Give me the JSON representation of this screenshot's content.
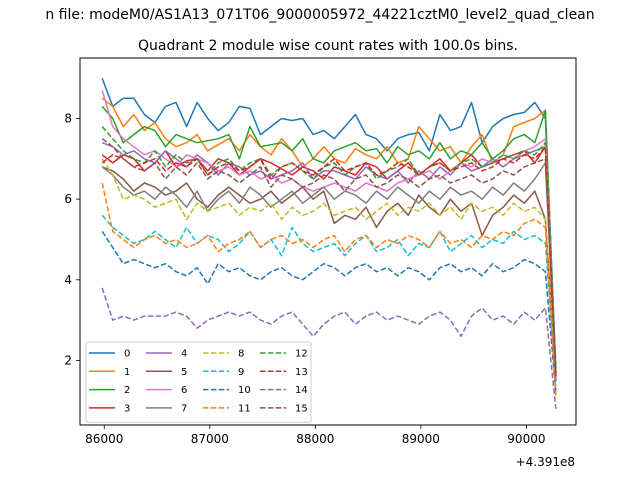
{
  "figure": {
    "suptitle": "n file: modeM0/AS1A13_071T06_9000005972_44221cztM0_level2_quad_clean",
    "title": "Quadrant 2 module wise count rates with 100.0s bins.",
    "offset_text": "+4.391e8"
  },
  "chart_data": {
    "type": "line",
    "title": "Quadrant 2 module wise count rates with 100.0s bins.",
    "xlabel": "",
    "ylabel": "",
    "x_offset": 439100000,
    "xlim": [
      85770,
      90470
    ],
    "ylim": [
      0.4,
      9.5
    ],
    "xticks": [
      86000,
      87000,
      88000,
      89000,
      90000
    ],
    "yticks": [
      2,
      4,
      6,
      8
    ],
    "grid": false,
    "legend": {
      "placement": "lower-left",
      "columns": 4
    },
    "x": [
      85980,
      86080,
      86180,
      86280,
      86380,
      86480,
      86580,
      86680,
      86780,
      86880,
      86980,
      87080,
      87180,
      87280,
      87380,
      87480,
      87580,
      87680,
      87780,
      87880,
      87980,
      88080,
      88180,
      88280,
      88380,
      88480,
      88580,
      88680,
      88780,
      88880,
      88980,
      89080,
      89180,
      89280,
      89380,
      89480,
      89580,
      89680,
      89780,
      89880,
      89980,
      90080,
      90180,
      90280
    ],
    "series": [
      {
        "name": "0",
        "color": "#1f77b4",
        "dash": "solid",
        "values": [
          9.0,
          8.3,
          8.5,
          8.5,
          8.1,
          7.9,
          8.3,
          8.4,
          7.8,
          8.4,
          8.0,
          7.7,
          7.9,
          8.3,
          8.25,
          7.6,
          7.8,
          8.0,
          7.95,
          8.0,
          7.6,
          7.7,
          7.5,
          7.8,
          8.1,
          7.6,
          7.5,
          7.2,
          7.5,
          7.6,
          7.65,
          7.2,
          8.1,
          7.7,
          7.8,
          8.4,
          7.4,
          7.8,
          8.0,
          8.1,
          8.15,
          8.4,
          8.0,
          1.8
        ]
      },
      {
        "name": "1",
        "color": "#ff7f0e",
        "dash": "solid",
        "values": [
          8.5,
          8.3,
          7.8,
          8.1,
          7.7,
          7.9,
          7.5,
          7.3,
          7.4,
          7.6,
          7.2,
          7.35,
          7.5,
          7.2,
          7.6,
          7.3,
          7.1,
          7.5,
          7.2,
          6.8,
          7.0,
          7.3,
          7.0,
          6.9,
          7.25,
          7.1,
          7.0,
          7.3,
          6.9,
          7.0,
          7.8,
          7.5,
          7.2,
          7.3,
          6.9,
          7.3,
          7.6,
          6.9,
          7.1,
          7.8,
          7.9,
          8.0,
          8.2,
          1.5
        ]
      },
      {
        "name": "2",
        "color": "#2ca02c",
        "dash": "solid",
        "values": [
          8.3,
          8.0,
          7.4,
          7.6,
          7.8,
          7.7,
          7.3,
          7.6,
          7.5,
          7.4,
          7.45,
          7.5,
          7.6,
          7.0,
          7.8,
          7.3,
          7.35,
          7.4,
          7.2,
          7.5,
          7.0,
          6.9,
          7.2,
          7.3,
          7.4,
          7.2,
          7.25,
          6.9,
          7.3,
          7.1,
          7.2,
          7.0,
          7.4,
          7.0,
          7.2,
          7.1,
          7.4,
          7.0,
          7.2,
          7.5,
          7.6,
          7.4,
          8.2,
          1.7
        ]
      },
      {
        "name": "3",
        "color": "#d62728",
        "dash": "solid",
        "values": [
          7.1,
          6.9,
          7.1,
          7.0,
          6.7,
          6.9,
          7.2,
          6.8,
          6.95,
          7.0,
          6.7,
          7.0,
          6.9,
          6.6,
          6.8,
          7.0,
          6.9,
          6.75,
          6.6,
          6.8,
          6.7,
          6.5,
          6.8,
          6.7,
          6.6,
          6.9,
          6.8,
          6.5,
          6.7,
          6.9,
          6.6,
          6.8,
          7.0,
          6.7,
          6.9,
          7.1,
          6.8,
          6.9,
          7.0,
          7.1,
          7.2,
          6.9,
          7.3,
          1.6
        ]
      },
      {
        "name": "4",
        "color": "#9467bd",
        "dash": "solid",
        "values": [
          7.4,
          7.3,
          7.1,
          7.2,
          7.0,
          6.9,
          7.2,
          7.0,
          6.8,
          7.1,
          6.9,
          6.6,
          6.9,
          6.8,
          6.6,
          6.7,
          6.5,
          6.6,
          6.7,
          6.9,
          6.5,
          6.7,
          6.7,
          6.6,
          6.5,
          6.8,
          6.6,
          6.5,
          6.7,
          6.4,
          6.7,
          6.5,
          6.8,
          6.6,
          6.9,
          6.7,
          6.8,
          7.0,
          6.8,
          7.0,
          7.1,
          7.2,
          7.3,
          1.5
        ]
      },
      {
        "name": "5",
        "color": "#8c564b",
        "dash": "solid",
        "values": [
          6.8,
          6.7,
          6.5,
          6.2,
          6.4,
          6.3,
          6.1,
          6.2,
          6.4,
          6.0,
          5.8,
          6.1,
          6.3,
          6.1,
          5.9,
          6.0,
          6.2,
          5.9,
          6.1,
          6.3,
          6.0,
          6.2,
          5.4,
          5.6,
          5.5,
          5.8,
          5.3,
          5.7,
          5.9,
          5.6,
          6.1,
          5.8,
          5.6,
          6.0,
          5.7,
          5.9,
          5.1,
          5.6,
          5.8,
          6.1,
          5.9,
          6.2,
          5.5,
          1.6
        ]
      },
      {
        "name": "6",
        "color": "#e377c2",
        "dash": "solid",
        "values": [
          8.7,
          7.8,
          7.5,
          7.3,
          7.1,
          7.2,
          7.0,
          6.8,
          7.1,
          7.0,
          6.9,
          6.7,
          6.8,
          6.6,
          6.7,
          6.5,
          6.6,
          6.4,
          6.5,
          6.3,
          6.2,
          6.3,
          6.4,
          6.3,
          6.2,
          6.4,
          6.3,
          6.2,
          6.4,
          6.5,
          6.6,
          6.7,
          6.5,
          6.7,
          6.9,
          6.8,
          7.0,
          6.9,
          7.1,
          7.0,
          7.2,
          7.3,
          7.5,
          1.7
        ]
      },
      {
        "name": "7",
        "color": "#7f7f7f",
        "dash": "solid",
        "values": [
          6.8,
          6.6,
          6.3,
          6.1,
          6.2,
          6.0,
          6.3,
          6.1,
          5.8,
          6.2,
          5.7,
          6.0,
          6.2,
          5.9,
          6.3,
          6.1,
          5.8,
          6.0,
          6.2,
          5.9,
          6.1,
          6.3,
          6.0,
          6.2,
          6.1,
          5.9,
          6.2,
          6.0,
          6.3,
          6.1,
          5.9,
          6.2,
          6.0,
          6.3,
          6.1,
          6.2,
          6.0,
          6.3,
          6.1,
          6.4,
          6.2,
          6.5,
          6.9,
          1.6
        ]
      },
      {
        "name": "8",
        "color": "#bcbd22",
        "dash": "dashed",
        "values": [
          7.0,
          6.6,
          6.0,
          6.1,
          6.0,
          5.8,
          5.9,
          6.0,
          5.5,
          5.9,
          5.7,
          5.8,
          5.9,
          5.6,
          5.8,
          5.7,
          5.9,
          5.5,
          5.8,
          5.6,
          5.7,
          5.9,
          5.6,
          5.7,
          5.8,
          5.5,
          5.7,
          5.9,
          5.6,
          5.8,
          5.7,
          5.9,
          5.6,
          5.8,
          5.5,
          5.9,
          5.7,
          5.8,
          5.6,
          5.9,
          5.7,
          5.8,
          5.5,
          1.5
        ]
      },
      {
        "name": "9",
        "color": "#17becf",
        "dash": "dashed",
        "values": [
          5.6,
          5.3,
          5.1,
          4.9,
          5.0,
          5.2,
          5.0,
          4.8,
          5.3,
          4.9,
          5.1,
          5.0,
          4.7,
          4.9,
          5.2,
          4.8,
          5.0,
          4.6,
          5.3,
          4.9,
          4.7,
          4.8,
          4.9,
          4.6,
          4.9,
          5.1,
          4.7,
          4.8,
          5.0,
          4.6,
          4.9,
          4.8,
          5.2,
          4.7,
          4.9,
          5.1,
          4.8,
          5.0,
          4.9,
          5.2,
          5.0,
          5.1,
          4.9,
          1.4
        ]
      },
      {
        "name": "10",
        "color": "#1f77b4",
        "dash": "dashed",
        "values": [
          5.2,
          4.8,
          4.4,
          4.5,
          4.4,
          4.3,
          4.4,
          4.2,
          4.1,
          4.3,
          3.9,
          4.4,
          4.2,
          4.3,
          4.1,
          4.0,
          4.2,
          4.3,
          4.1,
          4.0,
          4.2,
          4.4,
          4.3,
          4.1,
          4.3,
          4.4,
          4.2,
          4.3,
          4.1,
          4.3,
          4.2,
          4.0,
          4.3,
          4.4,
          4.2,
          4.3,
          4.1,
          4.4,
          4.2,
          4.3,
          4.5,
          4.4,
          4.2,
          1.2
        ]
      },
      {
        "name": "11",
        "color": "#ff7f0e",
        "dash": "dashed",
        "values": [
          6.4,
          5.2,
          5.0,
          4.8,
          5.0,
          5.1,
          4.9,
          5.0,
          4.8,
          4.9,
          5.1,
          4.7,
          4.9,
          5.0,
          5.2,
          4.8,
          5.0,
          5.1,
          4.9,
          5.0,
          4.8,
          5.0,
          5.1,
          4.7,
          5.0,
          5.1,
          4.8,
          5.0,
          4.9,
          5.1,
          5.0,
          4.8,
          5.2,
          4.9,
          5.0,
          4.8,
          5.1,
          5.0,
          5.2,
          5.1,
          5.4,
          5.5,
          5.3,
          1.1
        ]
      },
      {
        "name": "12",
        "color": "#2ca02c",
        "dash": "dashed",
        "values": [
          7.8,
          7.5,
          7.2,
          7.0,
          6.9,
          7.2,
          6.8,
          7.1,
          6.9,
          7.0,
          6.6,
          6.9,
          7.0,
          6.7,
          6.9,
          7.0,
          6.6,
          6.8,
          6.9,
          6.7,
          6.5,
          6.8,
          6.9,
          6.6,
          6.8,
          6.9,
          6.5,
          6.7,
          6.8,
          7.0,
          6.6,
          6.8,
          6.9,
          6.7,
          6.9,
          7.0,
          6.8,
          6.9,
          7.1,
          7.0,
          7.2,
          7.1,
          7.4,
          1.7
        ]
      },
      {
        "name": "13",
        "color": "#d62728",
        "dash": "dashed",
        "values": [
          6.9,
          7.1,
          7.0,
          6.8,
          6.9,
          7.0,
          6.7,
          6.9,
          6.8,
          7.0,
          6.6,
          6.8,
          6.9,
          6.7,
          6.8,
          7.0,
          6.5,
          6.8,
          6.9,
          6.7,
          6.6,
          6.8,
          7.0,
          6.7,
          6.8,
          6.9,
          6.6,
          6.7,
          6.9,
          6.8,
          6.6,
          6.8,
          6.9,
          6.7,
          6.8,
          6.9,
          6.7,
          6.8,
          7.0,
          6.9,
          7.1,
          7.0,
          7.3,
          1.6
        ]
      },
      {
        "name": "14",
        "color": "#9467bd",
        "dash": "dashed",
        "values": [
          3.8,
          3.0,
          3.1,
          3.0,
          3.1,
          3.1,
          3.1,
          3.2,
          3.1,
          2.8,
          3.0,
          3.1,
          3.2,
          3.1,
          3.2,
          3.0,
          2.9,
          3.1,
          3.2,
          2.9,
          2.6,
          2.9,
          3.1,
          3.2,
          2.9,
          3.1,
          3.2,
          3.0,
          3.1,
          3.0,
          2.9,
          3.1,
          3.2,
          3.0,
          2.6,
          3.1,
          3.3,
          3.0,
          3.1,
          2.9,
          3.2,
          3.0,
          3.3,
          0.8
        ]
      },
      {
        "name": "15",
        "color": "#8c564b",
        "dash": "dashed",
        "values": [
          7.5,
          7.3,
          7.0,
          6.8,
          6.7,
          6.9,
          6.5,
          6.8,
          6.6,
          6.9,
          6.5,
          6.7,
          6.6,
          6.4,
          6.6,
          6.8,
          6.3,
          6.6,
          6.5,
          6.3,
          6.4,
          6.6,
          6.5,
          6.2,
          6.5,
          6.6,
          6.3,
          6.4,
          6.6,
          6.5,
          6.3,
          6.5,
          6.6,
          6.4,
          6.5,
          6.6,
          6.4,
          6.5,
          6.7,
          6.6,
          6.8,
          6.9,
          7.0,
          1.6
        ]
      }
    ]
  }
}
